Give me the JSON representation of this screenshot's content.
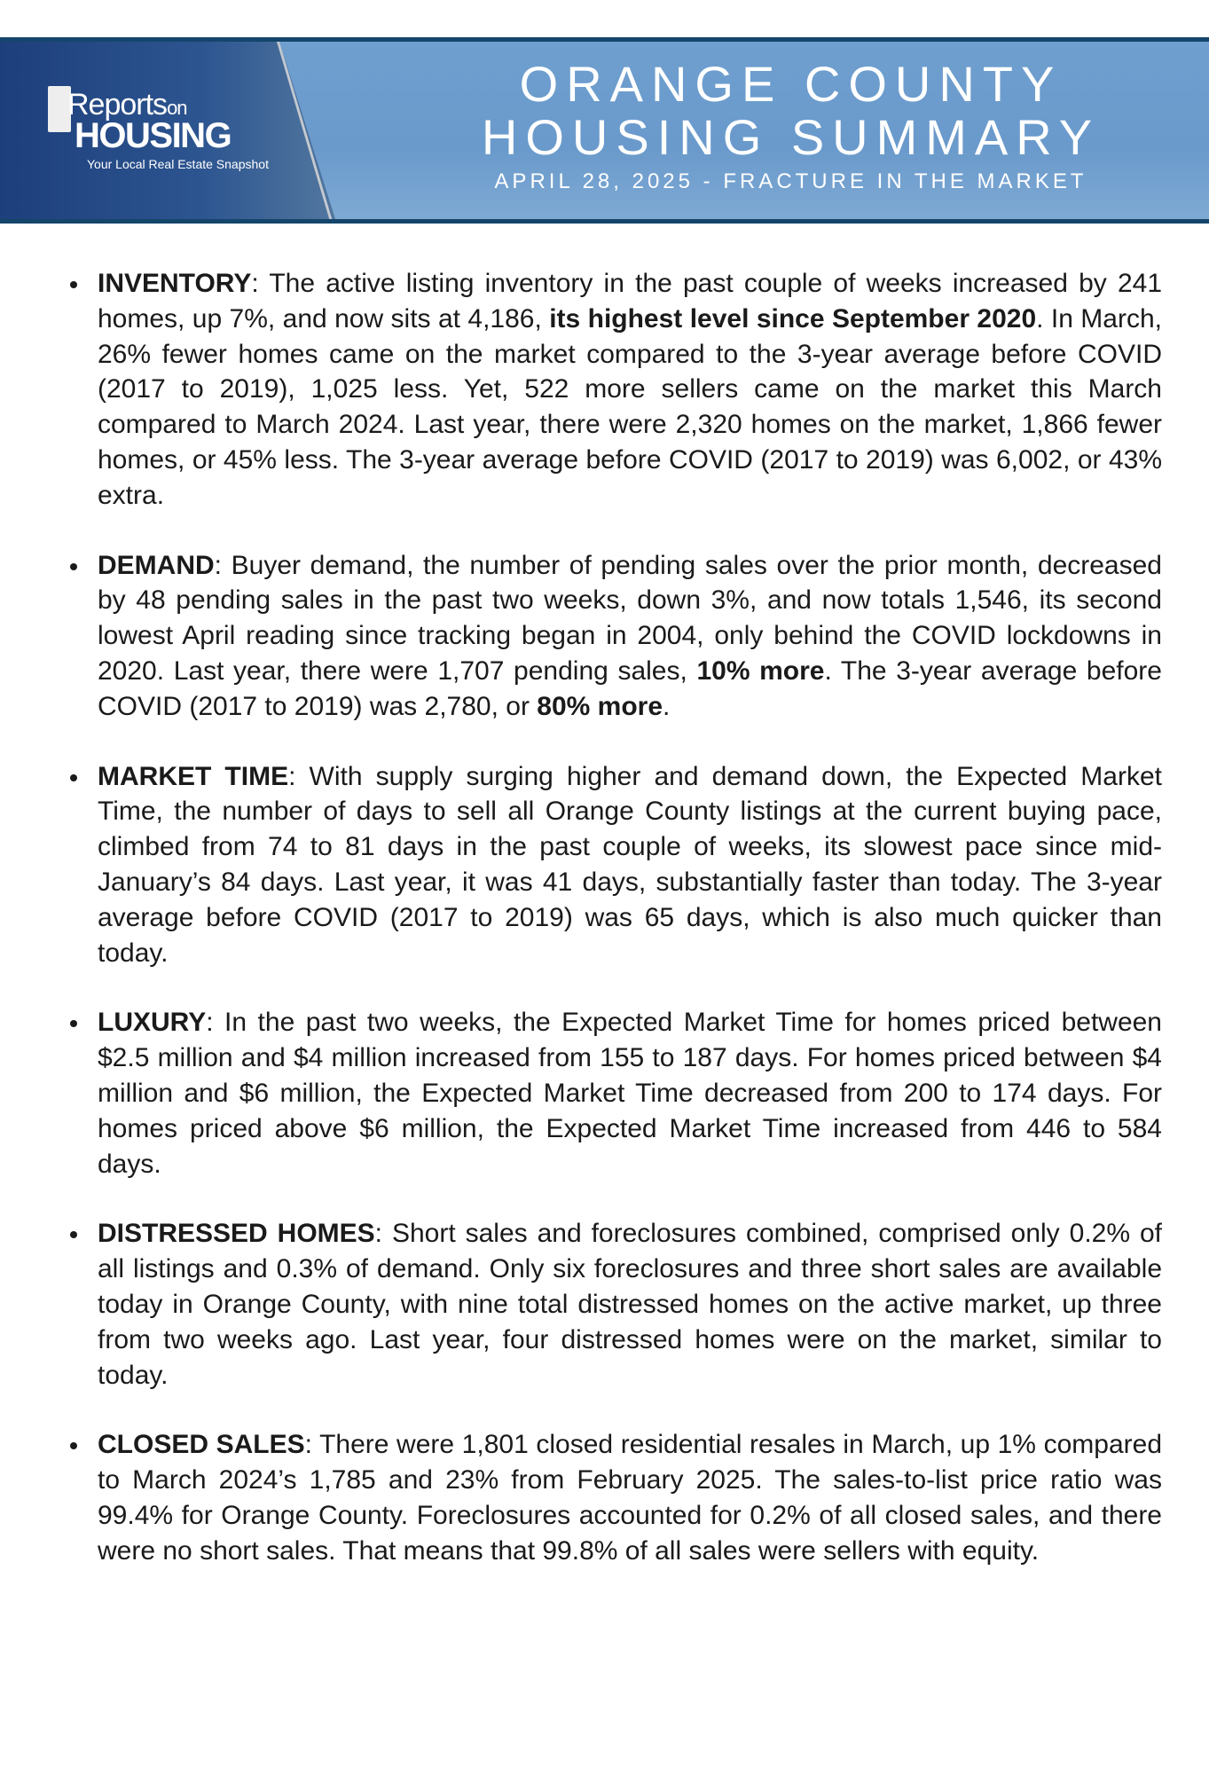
{
  "header": {
    "logo": {
      "reports": "Reports",
      "on": "on",
      "housing": "HOUSING",
      "tagline": "Your Local Real Estate Snapshot"
    },
    "title_line1": "ORANGE COUNTY",
    "title_line2": "HOUSING SUMMARY",
    "subtitle": "APRIL 28, 2025 - FRACTURE IN THE MARKET"
  },
  "items": [
    {
      "label": "INVENTORY",
      "parts": [
        ": The active listing inventory in the past couple of weeks increased by 241 homes, up 7%, and now sits at 4,186, ",
        "its highest level since September 2020",
        ". In March, 26% fewer homes came on the market compared to the 3-year average before COVID (2017 to 2019), 1,025 less. Yet, 522 more sellers came on the market this March compared to March 2024. Last year, there were 2,320 homes on the market, 1,866 fewer homes, or 45% less. The 3-year average before COVID (2017 to 2019) was 6,002, or 43% extra."
      ]
    },
    {
      "label": "DEMAND",
      "parts": [
        ": Buyer demand, the number of pending sales over the prior month, decreased by 48 pending sales in the past two weeks, down 3%, and now totals 1,546, its second lowest April reading since tracking began in 2004, only behind the COVID lockdowns in 2020. Last year, there were 1,707 pending sales, ",
        "10% more",
        ". The 3-year average before COVID (2017 to 2019) was 2,780, or ",
        "80% more",
        "."
      ]
    },
    {
      "label": "MARKET TIME",
      "parts": [
        ": With supply surging higher and demand down, the Expected Market Time, the number of days to sell all Orange County listings at the current buying pace, climbed from 74 to 81 days in the past couple of weeks, its slowest pace since mid-January’s 84 days. Last year, it was 41 days, substantially faster than today. The 3-year average before COVID (2017 to 2019) was 65 days, which is also much quicker than today."
      ]
    },
    {
      "label": "LUXURY",
      "parts": [
        ": In the past two weeks, the Expected Market Time for homes priced between $2.5 million and $4 million increased from 155 to 187 days. For homes priced between $4 million and $6 million, the Expected Market Time decreased from 200 to 174 days. For homes priced above $6 million, the Expected Market Time increased from 446 to 584 days."
      ]
    },
    {
      "label": "DISTRESSED HOMES",
      "parts": [
        ": Short sales and foreclosures combined, comprised only 0.2% of all listings and 0.3% of demand. Only six foreclosures and three short sales are available today in Orange County, with nine total distressed homes on the active market, up three from two weeks ago. Last year, four distressed homes were on the market, similar to today."
      ]
    },
    {
      "label": "CLOSED SALES",
      "parts": [
        ": There were 1,801 closed residential resales in March, up 1% compared to March 2024’s 1,785 and 23% from February 2025. The sales-to-list price ratio was 99.4% for Orange County. Foreclosures accounted for 0.2% of all closed sales, and there were no short sales. That means that 99.8% of all sales were sellers with equity."
      ]
    }
  ]
}
